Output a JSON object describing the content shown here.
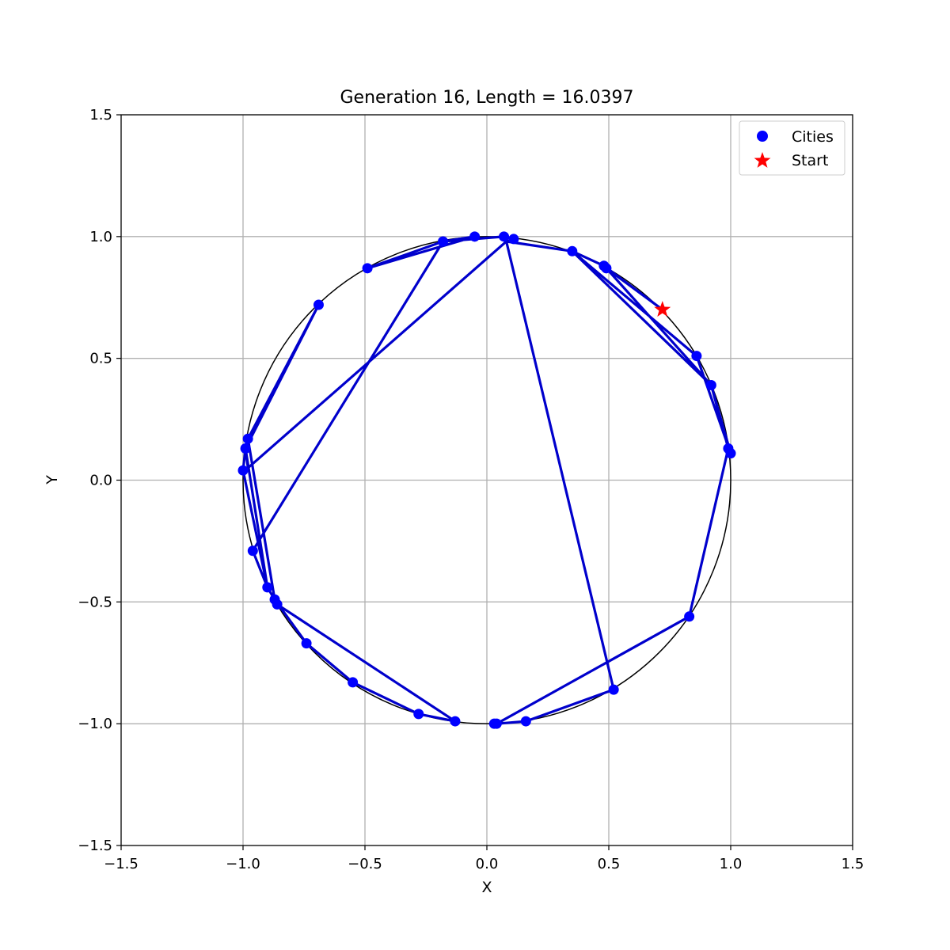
{
  "chart_data": {
    "type": "scatter",
    "title": "Generation 16, Length = 16.0397",
    "xlabel": "X",
    "ylabel": "Y",
    "xlim": [
      -1.5,
      1.5
    ],
    "ylim": [
      -1.5,
      1.5
    ],
    "xticks": [
      -1.5,
      -1.0,
      -0.5,
      0.0,
      0.5,
      1.0,
      1.5
    ],
    "yticks": [
      -1.5,
      -1.0,
      -0.5,
      0.0,
      0.5,
      1.0,
      1.5
    ],
    "xtick_labels": [
      "−1.5",
      "−1.0",
      "−0.5",
      "0.0",
      "0.5",
      "1.0",
      "1.5"
    ],
    "ytick_labels": [
      "−1.5",
      "−1.0",
      "−0.5",
      "0.0",
      "0.5",
      "1.0",
      "1.5"
    ],
    "grid": true,
    "legend_position": "top-right",
    "legend": [
      {
        "label": "Cities",
        "marker": "circle",
        "color": "#0000ff"
      },
      {
        "label": "Start",
        "marker": "star",
        "color": "#ff0000"
      }
    ],
    "reference_circle": {
      "center": [
        0,
        0
      ],
      "radius": 1,
      "color": "#000000"
    },
    "route_color": "#0000cc",
    "cities_color": "#0000ff",
    "start_color": "#ff0000",
    "start": {
      "x": 0.72,
      "y": 0.7
    },
    "route": [
      {
        "x": 0.72,
        "y": 0.7
      },
      {
        "x": 0.49,
        "y": 0.87
      },
      {
        "x": 0.92,
        "y": 0.39
      },
      {
        "x": 0.99,
        "y": 0.13
      },
      {
        "x": 0.83,
        "y": -0.56
      },
      {
        "x": 0.04,
        "y": -1.0
      },
      {
        "x": 0.16,
        "y": -0.99
      },
      {
        "x": 0.52,
        "y": -0.86
      },
      {
        "x": 0.08,
        "y": 0.98
      },
      {
        "x": -0.98,
        "y": 0.05
      },
      {
        "x": -0.99,
        "y": 0.13
      },
      {
        "x": -0.69,
        "y": 0.72
      },
      {
        "x": -0.98,
        "y": 0.17
      },
      {
        "x": -0.87,
        "y": -0.49
      },
      {
        "x": -0.86,
        "y": -0.51
      },
      {
        "x": -0.13,
        "y": -0.99
      },
      {
        "x": -0.28,
        "y": -0.96
      },
      {
        "x": -0.55,
        "y": -0.83
      },
      {
        "x": -0.74,
        "y": -0.67
      },
      {
        "x": -0.87,
        "y": -0.49
      },
      {
        "x": -0.9,
        "y": -0.44
      },
      {
        "x": -1.0,
        "y": 0.04
      },
      {
        "x": -0.99,
        "y": 0.13
      },
      {
        "x": -0.9,
        "y": -0.44
      },
      {
        "x": -0.96,
        "y": -0.29
      },
      {
        "x": -0.18,
        "y": 0.98
      },
      {
        "x": -0.05,
        "y": 1.0
      },
      {
        "x": -0.49,
        "y": 0.87
      },
      {
        "x": -0.18,
        "y": 0.98
      },
      {
        "x": 0.07,
        "y": 1.0
      },
      {
        "x": 0.11,
        "y": 0.99
      },
      {
        "x": 0.08,
        "y": 0.98
      },
      {
        "x": 0.35,
        "y": 0.94
      },
      {
        "x": 0.86,
        "y": 0.51
      },
      {
        "x": 1.0,
        "y": 0.11
      },
      {
        "x": 0.92,
        "y": 0.39
      },
      {
        "x": 0.35,
        "y": 0.94
      },
      {
        "x": 0.48,
        "y": 0.88
      },
      {
        "x": 0.72,
        "y": 0.7
      }
    ],
    "cities": [
      {
        "x": 0.49,
        "y": 0.87
      },
      {
        "x": 0.48,
        "y": 0.88
      },
      {
        "x": 0.86,
        "y": 0.51
      },
      {
        "x": 0.92,
        "y": 0.39
      },
      {
        "x": 0.99,
        "y": 0.13
      },
      {
        "x": 1.0,
        "y": 0.11
      },
      {
        "x": 0.83,
        "y": -0.56
      },
      {
        "x": 0.52,
        "y": -0.86
      },
      {
        "x": 0.16,
        "y": -0.99
      },
      {
        "x": 0.04,
        "y": -1.0
      },
      {
        "x": 0.03,
        "y": -1.0
      },
      {
        "x": -0.13,
        "y": -0.99
      },
      {
        "x": -0.28,
        "y": -0.96
      },
      {
        "x": -0.55,
        "y": -0.83
      },
      {
        "x": -0.74,
        "y": -0.67
      },
      {
        "x": -0.86,
        "y": -0.51
      },
      {
        "x": -0.87,
        "y": -0.49
      },
      {
        "x": -0.9,
        "y": -0.44
      },
      {
        "x": -0.96,
        "y": -0.29
      },
      {
        "x": -1.0,
        "y": 0.04
      },
      {
        "x": -0.99,
        "y": 0.13
      },
      {
        "x": -0.98,
        "y": 0.17
      },
      {
        "x": -0.69,
        "y": 0.72
      },
      {
        "x": -0.49,
        "y": 0.87
      },
      {
        "x": -0.18,
        "y": 0.98
      },
      {
        "x": -0.05,
        "y": 1.0
      },
      {
        "x": 0.07,
        "y": 1.0
      },
      {
        "x": 0.11,
        "y": 0.99
      },
      {
        "x": 0.35,
        "y": 0.94
      }
    ]
  }
}
